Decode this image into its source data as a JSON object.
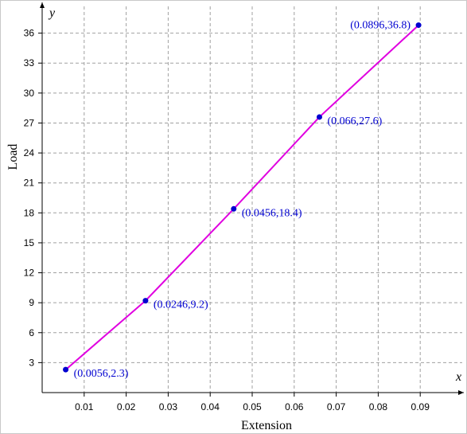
{
  "chart_data": {
    "type": "line",
    "title": "",
    "xlabel": "Extension",
    "ylabel": "Load",
    "x_axis_variable": "x",
    "y_axis_variable": "y",
    "xlim": [
      0,
      0.1
    ],
    "ylim": [
      0,
      39
    ],
    "x_ticks": [
      "0.01",
      "0.02",
      "0.03",
      "0.04",
      "0.05",
      "0.06",
      "0.07",
      "0.08",
      "0.09"
    ],
    "y_ticks": [
      "3",
      "6",
      "9",
      "12",
      "15",
      "18",
      "21",
      "24",
      "27",
      "30",
      "33",
      "36"
    ],
    "grid": true,
    "grid_style": "dashed",
    "series": [
      {
        "x": [
          0.0056,
          0.0246,
          0.0456,
          0.066,
          0.0896
        ],
        "y": [
          2.3,
          9.2,
          18.4,
          27.6,
          36.8
        ]
      }
    ],
    "point_labels": [
      "(0.0056,2.3)",
      "(0.0246,9.2)",
      "(0.0456,18.4)",
      "(0.066,27.6)",
      "(0.0896,36.8)"
    ],
    "colors": {
      "line": "#e000e0",
      "points": "#0000d0",
      "point_labels": "#0000d0",
      "grid": "#a0a0a0",
      "axis": "#000000"
    }
  }
}
